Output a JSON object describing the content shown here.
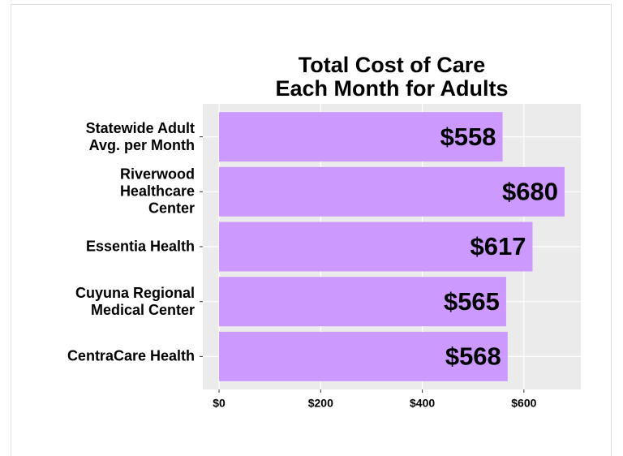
{
  "chart_data": {
    "type": "bar",
    "orientation": "horizontal",
    "title": "Total Cost of Care\nEach Month for Adults",
    "categories": [
      "Statewide Adult\nAvg. per Month",
      "Riverwood\nHealthcare\nCenter",
      "Essentia Health",
      "Cuyuna Regional\nMedical Center",
      "CentraCare Health"
    ],
    "values": [
      558,
      680,
      617,
      565,
      568
    ],
    "value_labels": [
      "$558",
      "$680",
      "$617",
      "$565",
      "$568"
    ],
    "color": "#cc99ff",
    "xlim": [
      -32,
      712
    ],
    "xticks": [
      {
        "value": 0,
        "label": "$0"
      },
      {
        "value": 200,
        "label": "$200"
      },
      {
        "value": 400,
        "label": "$400"
      },
      {
        "value": 600,
        "label": "$600"
      }
    ],
    "grid": true
  }
}
